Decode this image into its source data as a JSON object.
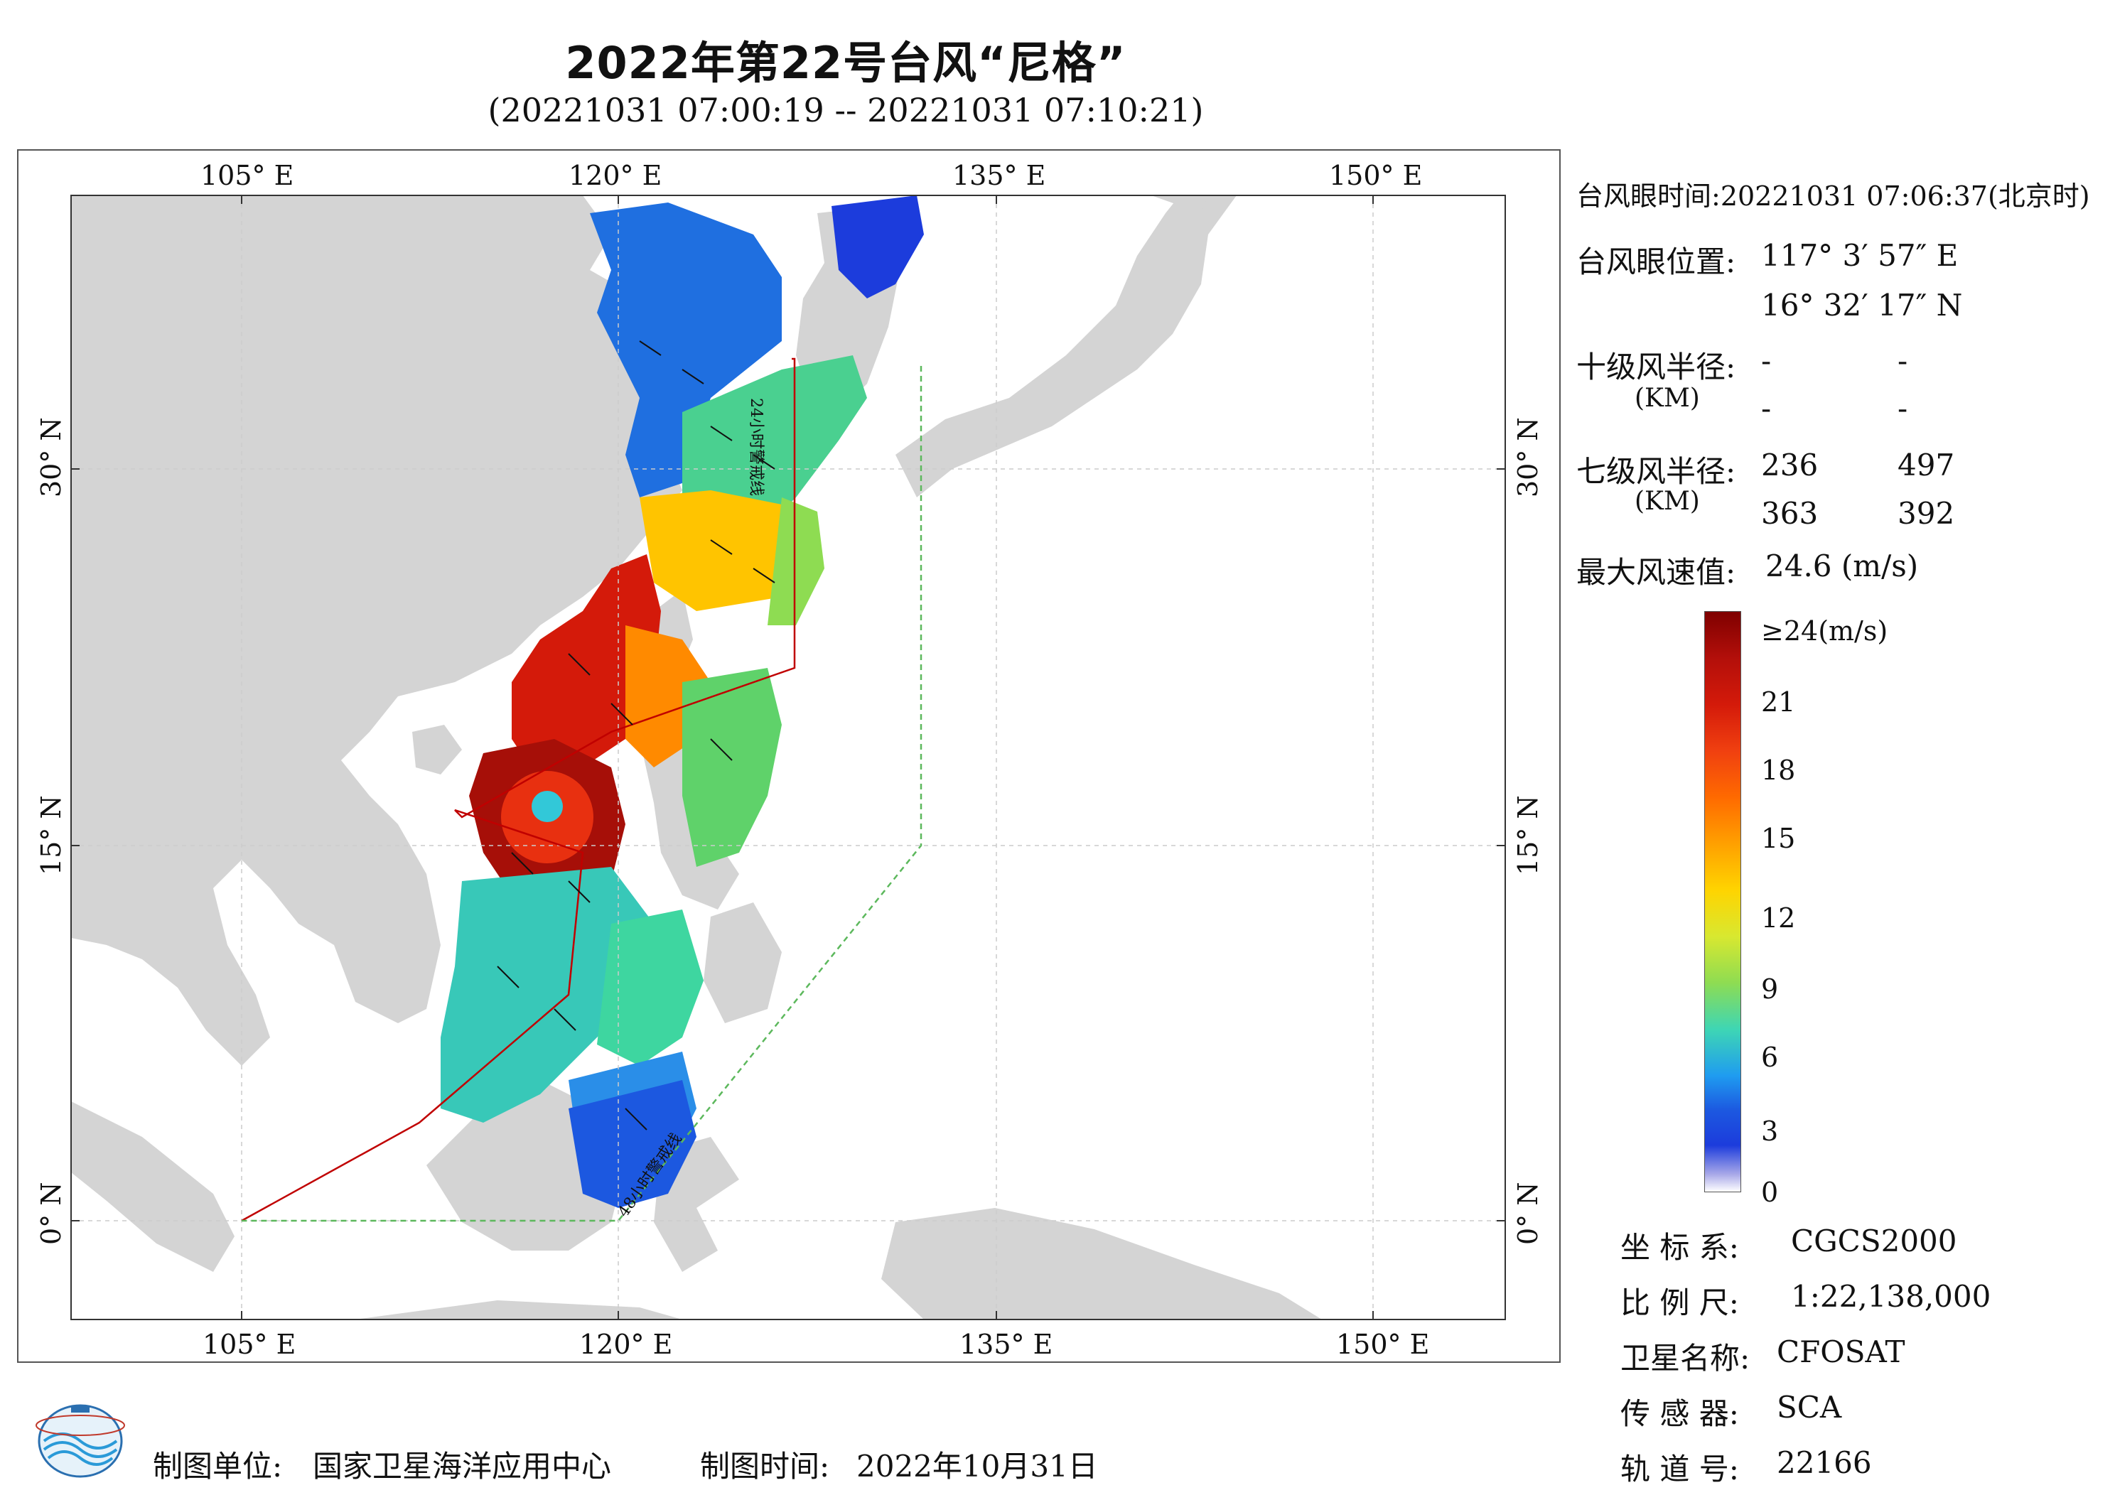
{
  "title": "2022年第22号台风“尼格”",
  "subtitle": "(20221031 07:00:19 -- 20221031 07:10:21)",
  "map": {
    "top_lon_labels": [
      "105° E",
      "120° E",
      "135° E",
      "150° E"
    ],
    "bottom_lon_labels": [
      "105° E",
      "120° E",
      "135° E",
      "150° E"
    ],
    "left_lat_labels": [
      "30° N",
      "15° N",
      "0° N"
    ],
    "right_lat_labels": [
      "30° N",
      "15° N",
      "0° N"
    ],
    "line_label_24h": "24小时警戒线",
    "line_label_48h": "48小时警戒线",
    "colors": {
      "land": "#d4d4d4",
      "sea": "#ffffff",
      "warn24": "#c00000",
      "warn48": "#5cb85c"
    }
  },
  "info": {
    "eye_time_label": "台风眼时间:",
    "eye_time_value": "20221031 07:06:37(北京时)",
    "eye_pos_label": "台风眼位置:",
    "eye_lon": "117° 3′ 57″ E",
    "eye_lat": "16° 32′ 17″ N",
    "r10_label": "十级风半径:",
    "r10_unit": "(KM)",
    "r10_values": [
      "-",
      "-",
      "-",
      "-"
    ],
    "r7_label": "七级风半径:",
    "r7_unit": "(KM)",
    "r7_values": [
      "236",
      "497",
      "363",
      "392"
    ],
    "max_wind_label": "最大风速值:",
    "max_wind_value": "24.6  (m/s)"
  },
  "colorbar": {
    "labels": [
      "≥24(m/s)",
      "21",
      "18",
      "15",
      "12",
      "9",
      "6",
      "3",
      "0"
    ],
    "colors": [
      "#7f0000",
      "#d41a0a",
      "#ff6a00",
      "#ffc400",
      "#c8e63c",
      "#3ed6b4",
      "#1f9cf0",
      "#1c3cdc",
      "#ffffff"
    ]
  },
  "meta": {
    "crs_label": "坐 标 系:",
    "crs_value": "CGCS2000",
    "scale_label": "比 例 尺:",
    "scale_value": "1:22,138,000",
    "satellite_label": "卫星名称:",
    "satellite_value": "CFOSAT",
    "sensor_label": "传 感 器:",
    "sensor_value": "SCA",
    "orbit_label": "轨 道 号:",
    "orbit_value": "22166"
  },
  "footer": {
    "producer_label": "制图单位:",
    "producer_value": "国家卫星海洋应用中心",
    "date_label": "制图时间:",
    "date_value": "2022年10月31日"
  }
}
